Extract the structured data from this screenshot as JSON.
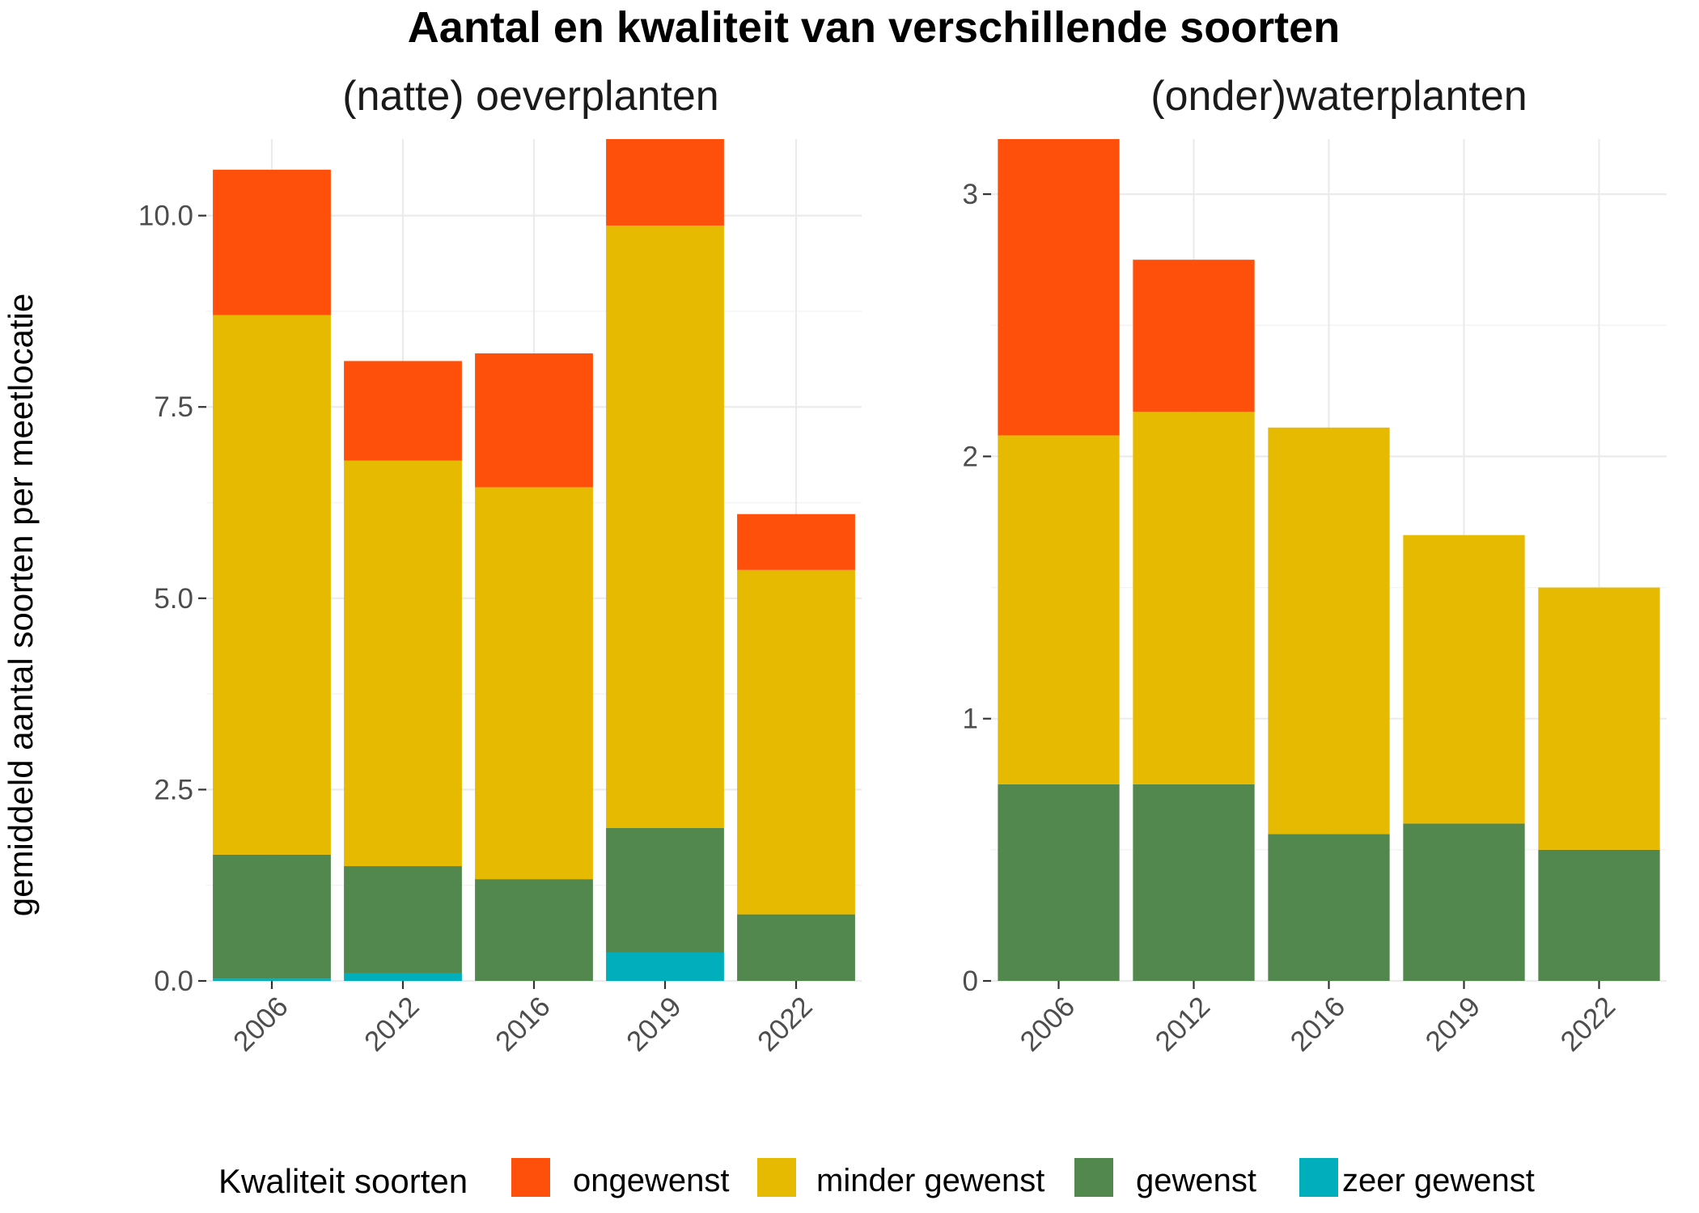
{
  "chart_data": {
    "type": "bar",
    "stacked": true,
    "title": "Aantal en kwaliteit van verschillende soorten",
    "ylabel": "gemiddeld aantal soorten per meetlocatie",
    "legend": {
      "title": "Kwaliteit soorten",
      "placement": "bottom",
      "entries": [
        "ongewenst",
        "minder gewenst",
        "gewenst",
        "zeer gewenst"
      ]
    },
    "colors": {
      "ongewenst": "#fe500a",
      "minder gewenst": "#e5ba00",
      "gewenst": "#52884e",
      "zeer gewenst": "#00afbb"
    },
    "grid": true,
    "categories": [
      "2006",
      "2012",
      "2016",
      "2019",
      "2022"
    ],
    "panels": [
      {
        "title": "(natte) oeverplanten",
        "ylim": [
          0,
          11
        ],
        "yticks": [
          0,
          2.5,
          5,
          7.5,
          10
        ],
        "ytick_labels": [
          "0.0",
          "2.5",
          "5.0",
          "7.5",
          "10.0"
        ],
        "series": [
          {
            "name": "zeer gewenst",
            "values": [
              0.03,
              0.1,
              0.0,
              0.37,
              0.0
            ]
          },
          {
            "name": "gewenst",
            "values": [
              1.62,
              1.4,
              1.33,
              1.63,
              0.87
            ]
          },
          {
            "name": "minder gewenst",
            "values": [
              7.05,
              5.3,
              5.12,
              7.87,
              4.5
            ]
          },
          {
            "name": "ongewenst",
            "values": [
              1.9,
              1.3,
              1.75,
              1.13,
              0.73
            ]
          }
        ]
      },
      {
        "title": "(onder)waterplanten",
        "ylim": [
          0,
          3.21
        ],
        "yticks": [
          0,
          1,
          2,
          3
        ],
        "ytick_labels": [
          "0",
          "1",
          "2",
          "3"
        ],
        "series": [
          {
            "name": "zeer gewenst",
            "values": [
              0,
              0,
              0,
              0,
              0
            ]
          },
          {
            "name": "gewenst",
            "values": [
              0.75,
              0.75,
              0.56,
              0.6,
              0.5
            ]
          },
          {
            "name": "minder gewenst",
            "values": [
              1.33,
              1.42,
              1.55,
              1.1,
              1.0
            ]
          },
          {
            "name": "ongewenst",
            "values": [
              1.13,
              0.58,
              0,
              0,
              0
            ]
          }
        ]
      }
    ]
  }
}
